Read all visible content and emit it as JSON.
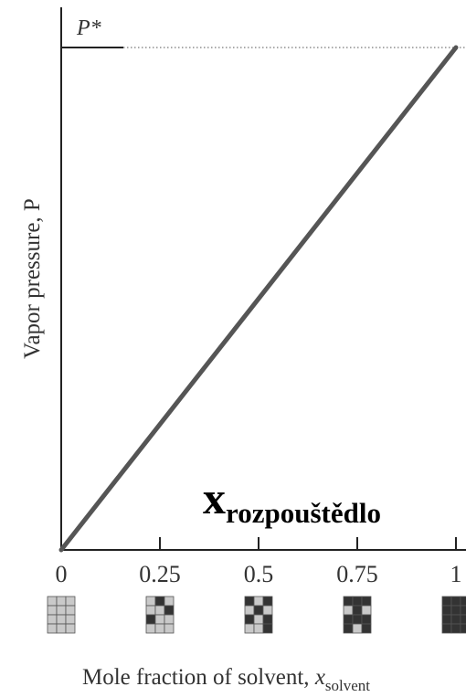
{
  "chart_data": {
    "type": "line",
    "title": "",
    "ylabel": "Vapor pressure, P",
    "xlabel_text": "Mole fraction of solvent, ",
    "xlabel_var": "x",
    "xlabel_sub": "solvent",
    "annotation_pstar": "P*",
    "annotation_x_main": "x",
    "annotation_x_sub": "rozpouštědlo",
    "xlim": [
      0,
      1
    ],
    "ylim": [
      0,
      1
    ],
    "xticks": [
      "0",
      "0.25",
      "0.5",
      "0.75",
      "1"
    ],
    "series": [
      {
        "x": [
          0,
          1
        ],
        "y": [
          0,
          1
        ]
      }
    ],
    "pstar_level": 1,
    "composition_grids": [
      {
        "x": 0,
        "solvent_fraction": 0.0
      },
      {
        "x": 0.25,
        "solvent_fraction": 0.25
      },
      {
        "x": 0.5,
        "solvent_fraction": 0.5
      },
      {
        "x": 0.75,
        "solvent_fraction": 0.75
      },
      {
        "x": 1,
        "solvent_fraction": 1.0
      }
    ],
    "colors": {
      "line": "#555555",
      "axis": "#222222",
      "solvent_cell": "#333333",
      "solute_cell": "#c9c9c9"
    }
  }
}
